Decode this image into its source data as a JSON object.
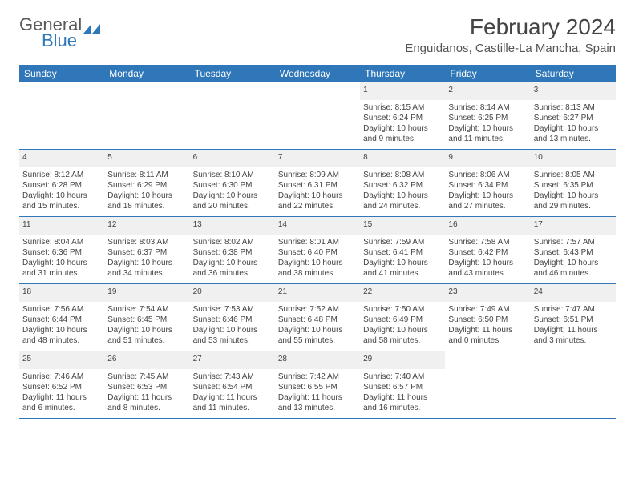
{
  "logo": {
    "part1": "General",
    "part2": "Blue"
  },
  "title": "February 2024",
  "location": "Enguidanos, Castille-La Mancha, Spain",
  "colors": {
    "header_bg": "#2f77b8",
    "header_fg": "#ffffff",
    "daynum_bg": "#f0f0f0",
    "text": "#444444",
    "row_border": "#2f77b8"
  },
  "weekdays": [
    "Sunday",
    "Monday",
    "Tuesday",
    "Wednesday",
    "Thursday",
    "Friday",
    "Saturday"
  ],
  "weeks": [
    [
      null,
      null,
      null,
      null,
      {
        "n": "1",
        "sunrise": "8:15 AM",
        "sunset": "6:24 PM",
        "daylight": "10 hours and 9 minutes."
      },
      {
        "n": "2",
        "sunrise": "8:14 AM",
        "sunset": "6:25 PM",
        "daylight": "10 hours and 11 minutes."
      },
      {
        "n": "3",
        "sunrise": "8:13 AM",
        "sunset": "6:27 PM",
        "daylight": "10 hours and 13 minutes."
      }
    ],
    [
      {
        "n": "4",
        "sunrise": "8:12 AM",
        "sunset": "6:28 PM",
        "daylight": "10 hours and 15 minutes."
      },
      {
        "n": "5",
        "sunrise": "8:11 AM",
        "sunset": "6:29 PM",
        "daylight": "10 hours and 18 minutes."
      },
      {
        "n": "6",
        "sunrise": "8:10 AM",
        "sunset": "6:30 PM",
        "daylight": "10 hours and 20 minutes."
      },
      {
        "n": "7",
        "sunrise": "8:09 AM",
        "sunset": "6:31 PM",
        "daylight": "10 hours and 22 minutes."
      },
      {
        "n": "8",
        "sunrise": "8:08 AM",
        "sunset": "6:32 PM",
        "daylight": "10 hours and 24 minutes."
      },
      {
        "n": "9",
        "sunrise": "8:06 AM",
        "sunset": "6:34 PM",
        "daylight": "10 hours and 27 minutes."
      },
      {
        "n": "10",
        "sunrise": "8:05 AM",
        "sunset": "6:35 PM",
        "daylight": "10 hours and 29 minutes."
      }
    ],
    [
      {
        "n": "11",
        "sunrise": "8:04 AM",
        "sunset": "6:36 PM",
        "daylight": "10 hours and 31 minutes."
      },
      {
        "n": "12",
        "sunrise": "8:03 AM",
        "sunset": "6:37 PM",
        "daylight": "10 hours and 34 minutes."
      },
      {
        "n": "13",
        "sunrise": "8:02 AM",
        "sunset": "6:38 PM",
        "daylight": "10 hours and 36 minutes."
      },
      {
        "n": "14",
        "sunrise": "8:01 AM",
        "sunset": "6:40 PM",
        "daylight": "10 hours and 38 minutes."
      },
      {
        "n": "15",
        "sunrise": "7:59 AM",
        "sunset": "6:41 PM",
        "daylight": "10 hours and 41 minutes."
      },
      {
        "n": "16",
        "sunrise": "7:58 AM",
        "sunset": "6:42 PM",
        "daylight": "10 hours and 43 minutes."
      },
      {
        "n": "17",
        "sunrise": "7:57 AM",
        "sunset": "6:43 PM",
        "daylight": "10 hours and 46 minutes."
      }
    ],
    [
      {
        "n": "18",
        "sunrise": "7:56 AM",
        "sunset": "6:44 PM",
        "daylight": "10 hours and 48 minutes."
      },
      {
        "n": "19",
        "sunrise": "7:54 AM",
        "sunset": "6:45 PM",
        "daylight": "10 hours and 51 minutes."
      },
      {
        "n": "20",
        "sunrise": "7:53 AM",
        "sunset": "6:46 PM",
        "daylight": "10 hours and 53 minutes."
      },
      {
        "n": "21",
        "sunrise": "7:52 AM",
        "sunset": "6:48 PM",
        "daylight": "10 hours and 55 minutes."
      },
      {
        "n": "22",
        "sunrise": "7:50 AM",
        "sunset": "6:49 PM",
        "daylight": "10 hours and 58 minutes."
      },
      {
        "n": "23",
        "sunrise": "7:49 AM",
        "sunset": "6:50 PM",
        "daylight": "11 hours and 0 minutes."
      },
      {
        "n": "24",
        "sunrise": "7:47 AM",
        "sunset": "6:51 PM",
        "daylight": "11 hours and 3 minutes."
      }
    ],
    [
      {
        "n": "25",
        "sunrise": "7:46 AM",
        "sunset": "6:52 PM",
        "daylight": "11 hours and 6 minutes."
      },
      {
        "n": "26",
        "sunrise": "7:45 AM",
        "sunset": "6:53 PM",
        "daylight": "11 hours and 8 minutes."
      },
      {
        "n": "27",
        "sunrise": "7:43 AM",
        "sunset": "6:54 PM",
        "daylight": "11 hours and 11 minutes."
      },
      {
        "n": "28",
        "sunrise": "7:42 AM",
        "sunset": "6:55 PM",
        "daylight": "11 hours and 13 minutes."
      },
      {
        "n": "29",
        "sunrise": "7:40 AM",
        "sunset": "6:57 PM",
        "daylight": "11 hours and 16 minutes."
      },
      null,
      null
    ]
  ],
  "labels": {
    "sunrise": "Sunrise:",
    "sunset": "Sunset:",
    "daylight": "Daylight:"
  }
}
